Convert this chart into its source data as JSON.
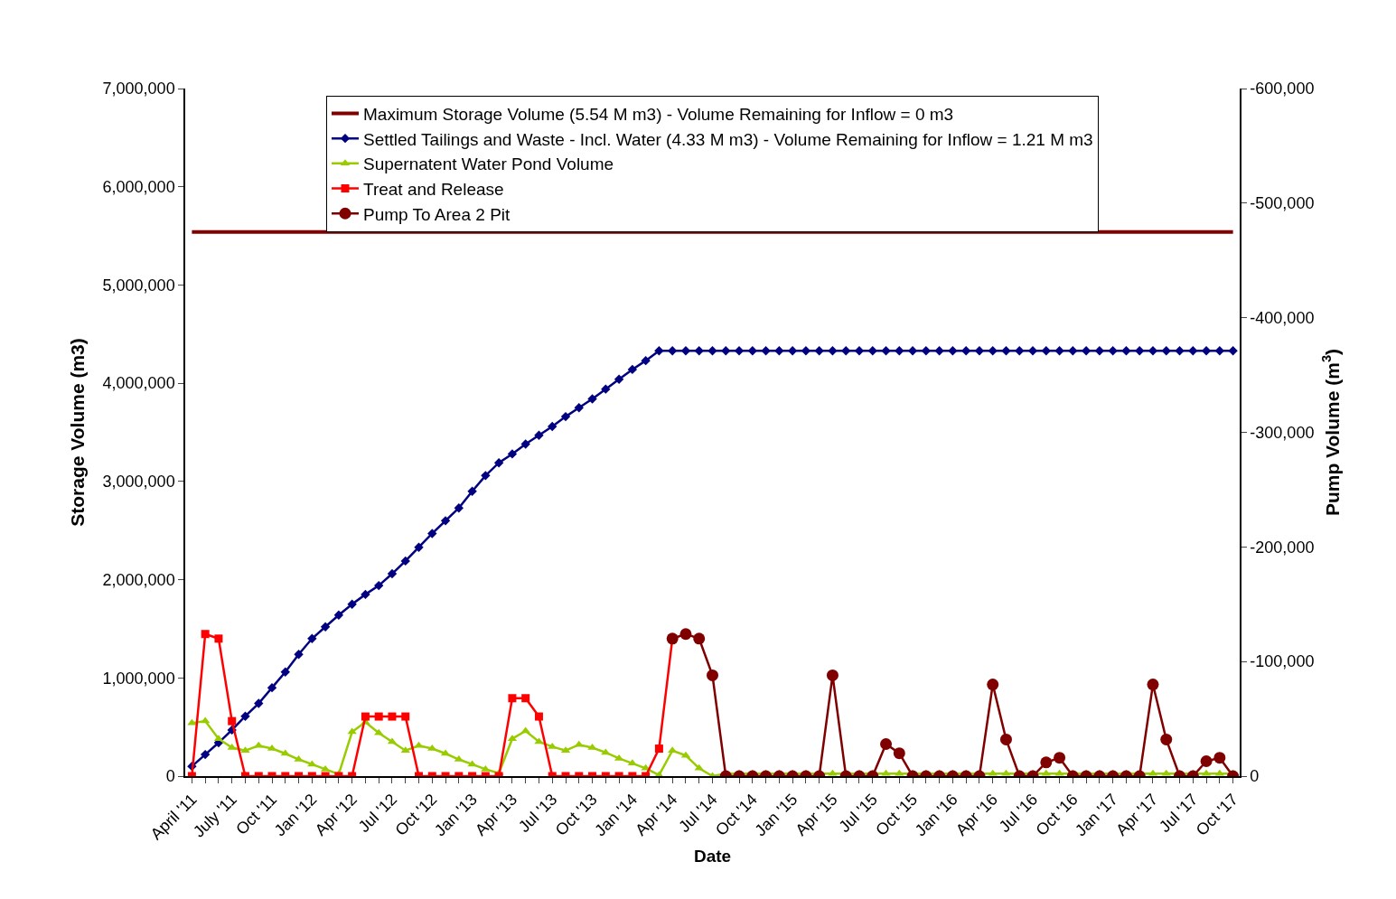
{
  "chart_data": {
    "type": "line",
    "xlabel": "Date",
    "ylabel": "Storage Volume (m3)",
    "y2label": "Pump Volume (m$^{3}$)",
    "categories": [
      "April '11",
      null,
      null,
      "July '11",
      null,
      null,
      "Oct '11",
      null,
      null,
      "Jan '12",
      null,
      null,
      "Apr '12",
      null,
      null,
      "Jul '12",
      null,
      null,
      "Oct '12",
      null,
      null,
      "Jan '13",
      null,
      null,
      "Apr '13",
      null,
      null,
      "Jul '13",
      null,
      null,
      "Oct '13",
      null,
      null,
      "Jan '14",
      null,
      null,
      "Apr '14",
      null,
      null,
      "Jul '14",
      null,
      null,
      "Oct '14",
      null,
      null,
      "Jan '15",
      null,
      null,
      "Apr '15",
      null,
      null,
      "Jul '15",
      null,
      null,
      "Oct '15",
      null,
      null,
      "Jan '16",
      null,
      null,
      "Apr '16",
      null,
      null,
      "Jul '16",
      null,
      null,
      "Oct '16",
      null,
      null,
      "Jan '17",
      null,
      null,
      "Apr '17",
      null,
      null,
      "Jul '17",
      null,
      null,
      "Oct '17"
    ],
    "ylim": [
      0,
      7000000
    ],
    "yticks": [
      {
        "value": 0,
        "label": "0"
      },
      {
        "value": 1000000,
        "label": "1,000,000"
      },
      {
        "value": 2000000,
        "label": "2,000,000"
      },
      {
        "value": 3000000,
        "label": "3,000,000"
      },
      {
        "value": 4000000,
        "label": "4,000,000"
      },
      {
        "value": 5000000,
        "label": "5,000,000"
      },
      {
        "value": 6000000,
        "label": "6,000,000"
      },
      {
        "value": 7000000,
        "label": "7,000,000"
      }
    ],
    "y2lim": [
      0,
      -600000
    ],
    "y2ticks": [
      {
        "value": 0,
        "label": "0"
      },
      {
        "value": -100000,
        "label": "-100,000"
      },
      {
        "value": -200000,
        "label": "-200,000"
      },
      {
        "value": -300000,
        "label": "-300,000"
      },
      {
        "value": -400000,
        "label": "-400,000"
      },
      {
        "value": -500000,
        "label": "-500,000"
      },
      {
        "value": -600000,
        "label": "-600,000"
      }
    ],
    "ref_lines": [
      {
        "axis": "y",
        "value": 5540000,
        "label": "Maximum Storage Volume (5.54 M m3) - Volume Remaining for Inflow = 0 m3",
        "color": "#800000",
        "line_style": "solid"
      }
    ],
    "series": [
      {
        "name": "Settled Tailings and Waste - Incl. Water (4.33 M m3) - Volume Remaining for Inflow = 1.21 M m3",
        "color": "#000080",
        "marker": "diamond",
        "values": [
          100000,
          220000,
          340000,
          470000,
          610000,
          740000,
          900000,
          1060000,
          1240000,
          1400000,
          1520000,
          1640000,
          1750000,
          1850000,
          1940000,
          2060000,
          2190000,
          2330000,
          2470000,
          2600000,
          2730000,
          2900000,
          3060000,
          3190000,
          3280000,
          3380000,
          3470000,
          3560000,
          3660000,
          3750000,
          3840000,
          3940000,
          4040000,
          4140000,
          4230000,
          4330000,
          4330000,
          4330000,
          4330000,
          4330000,
          4330000,
          4330000,
          4330000,
          4330000,
          4330000,
          4330000,
          4330000,
          4330000,
          4330000,
          4330000,
          4330000,
          4330000,
          4330000,
          4330000,
          4330000,
          4330000,
          4330000,
          4330000,
          4330000,
          4330000,
          4330000,
          4330000,
          4330000,
          4330000,
          4330000,
          4330000,
          4330000,
          4330000,
          4330000,
          4330000,
          4330000,
          4330000,
          4330000,
          4330000,
          4330000,
          4330000,
          4330000,
          4330000,
          4330000
        ]
      },
      {
        "name": "Supernatent Water Pond Volume",
        "color": "#99cc00",
        "marker": "triangle",
        "values": [
          540000,
          560000,
          380000,
          290000,
          260000,
          310000,
          280000,
          230000,
          170000,
          120000,
          70000,
          20000,
          450000,
          550000,
          440000,
          350000,
          260000,
          310000,
          280000,
          230000,
          170000,
          120000,
          70000,
          30000,
          380000,
          460000,
          350000,
          300000,
          260000,
          320000,
          290000,
          240000,
          180000,
          130000,
          80000,
          10000,
          260000,
          210000,
          80000,
          0,
          25000,
          25000,
          25000,
          25000,
          25000,
          25000,
          25000,
          25000,
          25000,
          25000,
          25000,
          25000,
          25000,
          25000,
          25000,
          25000,
          25000,
          25000,
          25000,
          25000,
          25000,
          25000,
          25000,
          25000,
          25000,
          25000,
          25000,
          25000,
          25000,
          25000,
          25000,
          25000,
          25000,
          25000,
          25000,
          25000,
          25000,
          25000,
          25000
        ]
      },
      {
        "name": "Treat and Release",
        "color": "#ff0000",
        "marker": "square",
        "axis": "y2",
        "values": [
          0,
          -124000,
          -120000,
          -48000,
          0,
          0,
          0,
          0,
          0,
          0,
          0,
          0,
          0,
          -52000,
          -52000,
          -52000,
          -52000,
          0,
          0,
          0,
          0,
          0,
          0,
          0,
          -68000,
          -68000,
          -52000,
          0,
          0,
          0,
          0,
          0,
          0,
          0,
          0,
          -24000,
          -120000,
          null,
          null,
          null,
          null,
          null,
          null,
          null,
          null,
          null,
          null,
          null,
          null,
          null,
          null,
          null,
          null,
          null,
          null,
          null,
          null,
          null,
          null,
          null,
          null,
          null,
          null,
          null,
          null,
          null,
          null,
          null,
          null,
          null,
          null,
          null,
          null,
          null,
          null,
          null,
          null,
          null,
          null
        ]
      },
      {
        "name": "Pump To Area 2 Pit",
        "color": "#800000",
        "marker": "circle",
        "axis": "y2",
        "values": [
          null,
          null,
          null,
          null,
          null,
          null,
          null,
          null,
          null,
          null,
          null,
          null,
          null,
          null,
          null,
          null,
          null,
          null,
          null,
          null,
          null,
          null,
          null,
          null,
          null,
          null,
          null,
          null,
          null,
          null,
          null,
          null,
          null,
          null,
          null,
          null,
          -120000,
          -124000,
          -120000,
          -88000,
          0,
          0,
          0,
          0,
          0,
          0,
          0,
          0,
          -88000,
          0,
          0,
          0,
          -28000,
          -20000,
          0,
          0,
          0,
          0,
          0,
          0,
          -80000,
          -32000,
          0,
          0,
          -12000,
          -16000,
          0,
          0,
          0,
          0,
          0,
          0,
          -80000,
          -32000,
          0,
          0,
          -13000,
          -16000,
          0
        ]
      }
    ],
    "legend": "top",
    "line_style": "solid"
  }
}
